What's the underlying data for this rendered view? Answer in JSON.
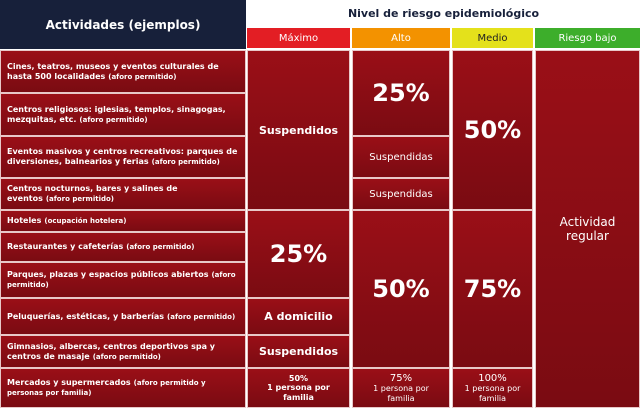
{
  "header": {
    "activities": "Actividades (ejemplos)",
    "title": "Nivel de riesgo epidemiológico",
    "levels": [
      "Máximo",
      "Alto",
      "Medio",
      "Riesgo bajo"
    ]
  },
  "rows": [
    {
      "activity": "Cines, teatros, museos y eventos culturales de hasta 500 localidades",
      "note": "(aforo permitido)"
    },
    {
      "activity": "Centros religiosos: iglesias, templos, sinagogas, mezquitas, etc.",
      "note": "(aforo permitido)"
    },
    {
      "activity": "Eventos masivos y centros recreativos: parques de diversiones, balnearios y ferias",
      "note": "(aforo permitido)"
    },
    {
      "activity": "Centros nocturnos, bares y salines de eventos",
      "note": "(aforo permitido)"
    },
    {
      "activity": "Hoteles",
      "note": "(ocupación hotelera)"
    },
    {
      "activity": "Restaurantes y cafeterías",
      "note": "(aforo permitido)"
    },
    {
      "activity": "Parques, plazas y espacios públicos abiertos",
      "note": "(aforo permitido)"
    },
    {
      "activity": "Peluquerías, estéticas, y barberías",
      "note": "(aforo permitido)"
    },
    {
      "activity": "Gimnasios, albercas, centros deportivos spa y centros de masaje",
      "note": "(aforo permitido)"
    },
    {
      "activity": "Mercados y supermercados",
      "note": "(aforo permitido y personas por familia)"
    }
  ],
  "levels": [
    {
      "cells": [
        {
          "text": "Suspendidos"
        },
        {
          "text": "25%"
        },
        {
          "text": "A domicilio"
        },
        {
          "text": "Suspendidos"
        },
        {
          "text": "50%",
          "detail": "1 persona por familia"
        }
      ]
    },
    {
      "cells": [
        {
          "text": "25%"
        },
        {
          "text": "Suspendidas"
        },
        {
          "text": "Suspendidas"
        },
        {
          "text": "50%"
        },
        {
          "text": "75%",
          "detail": "1 persona por familia"
        }
      ]
    },
    {
      "cells": [
        {
          "text": "50%"
        },
        {
          "text": "75%"
        },
        {
          "text": "100%",
          "detail": "1 persona por familia"
        }
      ]
    },
    {
      "cells": [
        {
          "text": "Actividad regular"
        }
      ]
    }
  ]
}
